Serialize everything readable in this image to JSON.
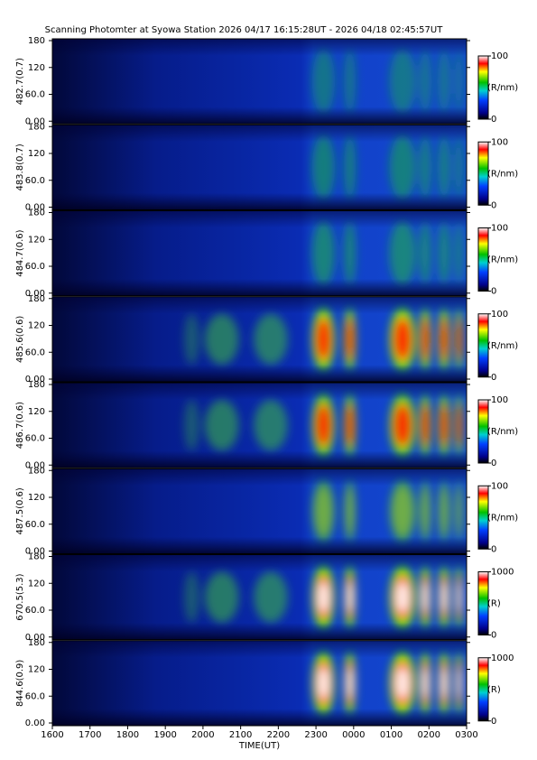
{
  "chart_data": [
    {
      "type": "heatmap",
      "title": "Scanning Photomter at Syowa Station 2026 04/17 16:15:28UT - 2026 04/18 02:45:57UT",
      "ylabel": "482.7(0.7)",
      "xlim": [
        16,
        27
      ],
      "ylim": [
        0,
        180
      ],
      "yticks": [
        {
          "value": 0,
          "label": "0.00"
        },
        {
          "value": 60,
          "label": "60.0"
        },
        120,
        180
      ],
      "clim": [
        0,
        100
      ],
      "cticks": [
        0,
        100
      ],
      "clabel": "(R/nm)"
    },
    {
      "type": "heatmap",
      "ylabel": "483.8(0.7)",
      "xlim": [
        16,
        27
      ],
      "ylim": [
        0,
        180
      ],
      "yticks": [
        {
          "value": 0,
          "label": "0.00"
        },
        {
          "value": 60,
          "label": "60.0"
        },
        120,
        180
      ],
      "clim": [
        0,
        100
      ],
      "cticks": [
        0,
        100
      ],
      "clabel": "(R/nm)"
    },
    {
      "type": "heatmap",
      "ylabel": "484.7(0.6)",
      "xlim": [
        16,
        27
      ],
      "ylim": [
        0,
        180
      ],
      "yticks": [
        {
          "value": 0,
          "label": "0.00"
        },
        {
          "value": 60,
          "label": "60.0"
        },
        120,
        180
      ],
      "clim": [
        0,
        100
      ],
      "cticks": [
        0,
        100
      ],
      "clabel": "(R/nm)"
    },
    {
      "type": "heatmap",
      "ylabel": "485.6(0.6)",
      "xlim": [
        16,
        27
      ],
      "ylim": [
        0,
        180
      ],
      "yticks": [
        {
          "value": 0,
          "label": "0.00"
        },
        {
          "value": 60,
          "label": "60.0"
        },
        120,
        180
      ],
      "clim": [
        0,
        100
      ],
      "cticks": [
        0,
        100
      ],
      "clabel": "(R/nm)"
    },
    {
      "type": "heatmap",
      "ylabel": "486.7(0.6)",
      "xlim": [
        16,
        27
      ],
      "ylim": [
        0,
        180
      ],
      "yticks": [
        {
          "value": 0,
          "label": "0.00"
        },
        {
          "value": 60,
          "label": "60.0"
        },
        120,
        180
      ],
      "clim": [
        0,
        100
      ],
      "cticks": [
        0,
        100
      ],
      "clabel": "(R/nm)"
    },
    {
      "type": "heatmap",
      "ylabel": "487.5(0.6)",
      "xlim": [
        16,
        27
      ],
      "ylim": [
        0,
        180
      ],
      "yticks": [
        {
          "value": 0,
          "label": "0.00"
        },
        {
          "value": 60,
          "label": "60.0"
        },
        120,
        180
      ],
      "clim": [
        0,
        100
      ],
      "cticks": [
        0,
        100
      ],
      "clabel": "(R/nm)"
    },
    {
      "type": "heatmap",
      "ylabel": "670.5(5.3)",
      "xlim": [
        16,
        27
      ],
      "ylim": [
        0,
        180
      ],
      "yticks": [
        {
          "value": 0,
          "label": "0.00"
        },
        {
          "value": 60,
          "label": "60.0"
        },
        120,
        180
      ],
      "clim": [
        0,
        1000
      ],
      "cticks": [
        0,
        1000
      ],
      "clabel": "(R)"
    },
    {
      "type": "heatmap",
      "ylabel": "844.6(0.9)",
      "xlim": [
        16,
        27
      ],
      "ylim": [
        0,
        180
      ],
      "yticks": [
        {
          "value": 0,
          "label": "0.00"
        },
        {
          "value": 60,
          "label": "60.0"
        },
        120,
        180
      ],
      "clim": [
        0,
        1000
      ],
      "cticks": [
        0,
        1000
      ],
      "clabel": "(R)",
      "xlabel": "TIME(UT)",
      "xticks": [
        {
          "value": 16,
          "label": "1600"
        },
        {
          "value": 17,
          "label": "1700"
        },
        {
          "value": 18,
          "label": "1800"
        },
        {
          "value": 19,
          "label": "1900"
        },
        {
          "value": 20,
          "label": "2000"
        },
        {
          "value": 21,
          "label": "2100"
        },
        {
          "value": 22,
          "label": "2200"
        },
        {
          "value": 23,
          "label": "2300"
        },
        {
          "value": 24,
          "label": "0000"
        },
        {
          "value": 25,
          "label": "0100"
        },
        {
          "value": 26,
          "label": "0200"
        },
        {
          "value": 27,
          "label": "0300"
        }
      ]
    }
  ]
}
